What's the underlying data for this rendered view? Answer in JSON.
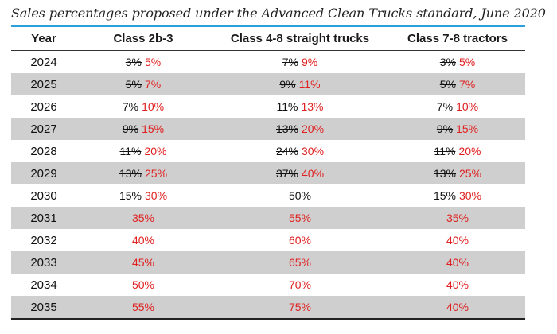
{
  "title": "Sales percentages proposed under the Advanced Clean Trucks standard, June 2020",
  "headers": [
    "Year",
    "Class 2b-3",
    "Class 4-8 straight trucks",
    "Class 7-8 tractors"
  ],
  "rows": [
    {
      "year": "2024",
      "cells": [
        {
          "old": "3%",
          "new": "5%"
        },
        {
          "old": "7%",
          "new": "9%"
        },
        {
          "old": "3%",
          "new": "5%"
        }
      ]
    },
    {
      "year": "2025",
      "cells": [
        {
          "old": "5%",
          "new": "7%"
        },
        {
          "old": "9%",
          "new": "11%"
        },
        {
          "old": "5%",
          "new": "7%"
        }
      ]
    },
    {
      "year": "2026",
      "cells": [
        {
          "old": "7%",
          "new": "10%"
        },
        {
          "old": "11%",
          "new": "13%"
        },
        {
          "old": "7%",
          "new": "10%"
        }
      ]
    },
    {
      "year": "2027",
      "cells": [
        {
          "old": "9%",
          "new": "15%"
        },
        {
          "old": "13%",
          "new": "20%"
        },
        {
          "old": "9%",
          "new": "15%"
        }
      ]
    },
    {
      "year": "2028",
      "cells": [
        {
          "old": "11%",
          "new": "20%"
        },
        {
          "old": "24%",
          "new": "30%"
        },
        {
          "old": "11%",
          "new": "20%"
        }
      ]
    },
    {
      "year": "2029",
      "cells": [
        {
          "old": "13%",
          "new": "25%"
        },
        {
          "old": "37%",
          "new": "40%"
        },
        {
          "old": "13%",
          "new": "25%"
        }
      ]
    },
    {
      "year": "2030",
      "cells": [
        {
          "old": "15%",
          "new": "30%"
        },
        {
          "plain": "50%"
        },
        {
          "old": "15%",
          "new": "30%"
        }
      ]
    },
    {
      "year": "2031",
      "cells": [
        {
          "new": "35%"
        },
        {
          "new": "55%"
        },
        {
          "new": "35%"
        }
      ]
    },
    {
      "year": "2032",
      "cells": [
        {
          "new": "40%"
        },
        {
          "new": "60%"
        },
        {
          "new": "40%"
        }
      ]
    },
    {
      "year": "2033",
      "cells": [
        {
          "new": "45%"
        },
        {
          "new": "65%"
        },
        {
          "new": "40%"
        }
      ]
    },
    {
      "year": "2034",
      "cells": [
        {
          "new": "50%"
        },
        {
          "new": "70%"
        },
        {
          "new": "40%"
        }
      ]
    },
    {
      "year": "2035",
      "cells": [
        {
          "new": "55%"
        },
        {
          "new": "75%"
        },
        {
          "new": "40%"
        }
      ]
    }
  ],
  "colors": {
    "accent_rule": "#2a9fd8",
    "new_value": "#e02020",
    "row_shade": "#cfcfcf"
  }
}
